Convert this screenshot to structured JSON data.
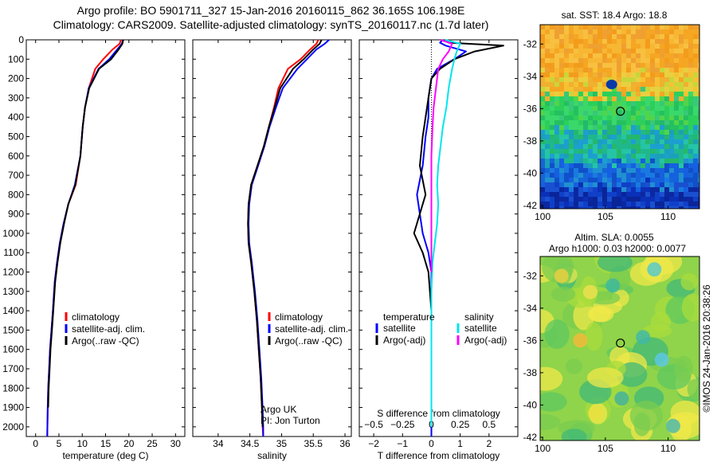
{
  "header": {
    "line1": "Argo profile: BO 5901711_327 15-Jan-2016 20160115_862 36.165S 106.198E",
    "line2": "Climatology: CARS2009. Satellite-adjusted climatology: synTS_20160117.nc (1.7d later)"
  },
  "chart_data": [
    {
      "type": "line",
      "title": "",
      "xlabel": "temperature (deg C)",
      "ylabel": "",
      "xlim": [
        -2,
        32
      ],
      "ylim": [
        2050,
        0
      ],
      "xticks": [
        0,
        5,
        10,
        15,
        20,
        25,
        30
      ],
      "xtick_labels": [
        "0",
        "5",
        "10",
        "15",
        "20",
        "25",
        "30"
      ],
      "yticks": [
        0,
        100,
        200,
        300,
        400,
        500,
        600,
        700,
        800,
        900,
        1000,
        1100,
        1200,
        1300,
        1400,
        1500,
        1600,
        1700,
        1800,
        1900,
        2000
      ],
      "ytick_labels": [
        "0",
        "100",
        "200",
        "300",
        "400",
        "500",
        "600",
        "700",
        "800",
        "900",
        "1000",
        "1100",
        "1200",
        "1300",
        "1400",
        "1500",
        "1600",
        "1700",
        "1800",
        "1900",
        "2000"
      ],
      "legend": [
        "climatology",
        "satellite-adj. clim.",
        "Argo(..raw -QC)"
      ],
      "series": [
        {
          "name": "climatology",
          "color": "#ff0000",
          "x": [
            18.3,
            18.0,
            16.5,
            14.5,
            12.8,
            11.4,
            10.6,
            10.1,
            9.6,
            8.6,
            7.0,
            6.0,
            5.2,
            4.6,
            4.1,
            3.7,
            3.4,
            3.1,
            2.9,
            2.7,
            2.6,
            2.5
          ],
          "y": [
            0,
            20,
            50,
            100,
            150,
            250,
            350,
            450,
            600,
            750,
            850,
            950,
            1050,
            1150,
            1250,
            1400,
            1500,
            1600,
            1700,
            1800,
            1900,
            2050
          ]
        },
        {
          "name": "satellite-adj. clim.",
          "color": "#0000ff",
          "x": [
            18.7,
            18.5,
            17.5,
            15.8,
            13.5,
            11.4,
            10.6,
            10.1,
            9.6,
            8.4,
            7.0,
            6.0,
            5.2,
            4.6,
            4.1,
            3.7,
            3.4,
            3.1,
            2.9,
            2.7,
            2.6,
            2.5
          ],
          "y": [
            0,
            20,
            50,
            100,
            150,
            250,
            350,
            450,
            600,
            750,
            850,
            950,
            1050,
            1150,
            1250,
            1400,
            1500,
            1600,
            1700,
            1800,
            1900,
            2050
          ]
        },
        {
          "name": "Argo(..raw -QC)",
          "color": "#000000",
          "x": [
            18.8,
            18.6,
            17.8,
            16.2,
            13.6,
            11.5,
            10.6,
            10.1,
            9.6,
            8.5,
            7.0,
            6.1,
            5.3,
            4.7,
            4.2,
            3.8,
            3.5,
            3.2,
            3.0,
            2.8,
            2.7
          ],
          "y": [
            0,
            20,
            50,
            100,
            150,
            250,
            350,
            450,
            600,
            750,
            850,
            950,
            1050,
            1150,
            1250,
            1400,
            1500,
            1600,
            1700,
            1800,
            1900
          ]
        }
      ]
    },
    {
      "type": "line",
      "title": "",
      "xlabel": "salinity",
      "ylabel": "",
      "xlim": [
        33.6,
        36.1
      ],
      "ylim": [
        2050,
        0
      ],
      "xticks": [
        34,
        34.5,
        35,
        35.5,
        36
      ],
      "xtick_labels": [
        "34",
        "34.5",
        "35",
        "35.5",
        "36"
      ],
      "legend": [
        "climatology",
        "satellite-adj. clim.",
        "Argo(..raw -QC)"
      ],
      "annotation": [
        "Argo UK",
        "PI: Jon Turton"
      ],
      "series": [
        {
          "name": "climatology",
          "color": "#ff0000",
          "x": [
            35.58,
            35.55,
            35.45,
            35.3,
            35.1,
            34.95,
            34.88,
            34.8,
            34.72,
            34.62,
            34.52,
            34.48,
            34.47,
            34.48,
            34.52,
            34.57,
            34.61,
            34.64,
            34.67,
            34.69,
            34.7,
            34.71
          ],
          "y": [
            0,
            20,
            50,
            100,
            150,
            250,
            350,
            450,
            550,
            650,
            750,
            850,
            950,
            1050,
            1150,
            1300,
            1450,
            1600,
            1750,
            1900,
            2000,
            2050
          ]
        },
        {
          "name": "satellite-adj. clim.",
          "color": "#0000ff",
          "x": [
            35.75,
            35.68,
            35.55,
            35.4,
            35.25,
            35.02,
            34.91,
            34.81,
            34.73,
            34.63,
            34.53,
            34.49,
            34.48,
            34.49,
            34.53,
            34.58,
            34.62,
            34.65,
            34.68,
            34.7,
            34.71,
            34.71
          ],
          "y": [
            0,
            20,
            50,
            100,
            150,
            250,
            350,
            450,
            550,
            650,
            750,
            850,
            950,
            1050,
            1150,
            1300,
            1450,
            1600,
            1750,
            1900,
            2000,
            2050
          ]
        },
        {
          "name": "Argo(..raw -QC)",
          "color": "#000000",
          "x": [
            35.63,
            35.6,
            35.5,
            35.35,
            35.18,
            34.98,
            34.89,
            34.8,
            34.72,
            34.62,
            34.52,
            34.48,
            34.47,
            34.48,
            34.52,
            34.57,
            34.61,
            34.64,
            34.67,
            34.69,
            34.7
          ],
          "y": [
            0,
            20,
            50,
            100,
            150,
            250,
            350,
            450,
            550,
            650,
            750,
            850,
            950,
            1050,
            1150,
            1300,
            1450,
            1600,
            1750,
            1900,
            2000
          ]
        }
      ]
    },
    {
      "type": "line",
      "title": "",
      "xlabel": "T difference from climatology",
      "xlabel_top": "S difference from climatology",
      "xlim": [
        -2.5,
        3.0
      ],
      "ylim": [
        2050,
        0
      ],
      "xticks": [
        -2,
        -1,
        0,
        1,
        2
      ],
      "xtick_labels": [
        "−2",
        "−1",
        "0",
        "1",
        "2"
      ],
      "xticks_top": [
        -0.5,
        -0.25,
        0,
        0.25,
        0.5
      ],
      "xtick_top_labels": [
        "−0.5",
        "−0.25",
        "0",
        "0.25",
        "0.5"
      ],
      "legend_temperature_title": "temperature",
      "legend_salinity_title": "salinity",
      "legend": [
        "satellite",
        "Argo(-adj)",
        "satellite",
        "Argo(-adj)"
      ],
      "series": [
        {
          "name": "temperature satellite",
          "color": "#0000ff",
          "x": [
            0.4,
            0.3,
            0.5,
            1.2,
            0.8,
            0.2,
            0.0,
            -0.1,
            -0.1,
            -0.2,
            -0.3,
            -0.5,
            -0.3,
            -0.1,
            0.0,
            0.0,
            0.0,
            0.0,
            0.0,
            0.0,
            0.0
          ],
          "y": [
            0,
            15,
            30,
            60,
            100,
            150,
            200,
            300,
            400,
            500,
            650,
            800,
            1000,
            1100,
            1200,
            1400,
            1600,
            1800,
            1900,
            2000,
            2050
          ]
        },
        {
          "name": "temperature Argo(-adj)",
          "color": "#000000",
          "x": [
            0.5,
            0.6,
            2.5,
            1.5,
            0.8,
            0.3,
            0.0,
            -0.1,
            -0.2,
            -0.3,
            -0.4,
            -0.2,
            -0.6,
            -0.3,
            -0.1,
            0.0,
            0.0,
            0.0,
            0.0,
            0.0
          ],
          "y": [
            0,
            15,
            30,
            60,
            100,
            150,
            200,
            300,
            400,
            500,
            650,
            800,
            1000,
            1100,
            1200,
            1400,
            1600,
            1800,
            1900,
            2000
          ]
        },
        {
          "name": "salinity satellite",
          "color": "#00e5ee",
          "x": [
            0.12,
            0.25,
            0.22,
            0.2,
            0.18,
            0.15,
            0.13,
            0.1,
            0.08,
            0.06,
            0.05,
            0.06,
            0.05,
            0.03,
            0.01,
            0.0,
            0.0,
            0.0,
            0.0
          ],
          "y": [
            0,
            20,
            60,
            100,
            150,
            250,
            350,
            450,
            550,
            650,
            750,
            850,
            950,
            1050,
            1150,
            1300,
            1500,
            1800,
            2000
          ]
        },
        {
          "name": "salinity Argo(-adj)",
          "color": "#ff00ff",
          "x": [
            0.08,
            0.18,
            0.15,
            0.1,
            0.06,
            0.04,
            0.02,
            0.01,
            0.0,
            0.0,
            0.0,
            0.0
          ],
          "y": [
            0,
            20,
            60,
            100,
            150,
            250,
            350,
            450,
            600,
            800,
            1000,
            1200
          ]
        }
      ]
    },
    {
      "type": "heatmap",
      "title": "sat. SST: 18.4  Argo: 18.8",
      "xlim": [
        99.8,
        112.5
      ],
      "ylim": [
        -42.2,
        -30.8
      ],
      "xticks": [
        100,
        105,
        110
      ],
      "xtick_labels": [
        "100",
        "105",
        "110"
      ],
      "yticks": [
        -32,
        -34,
        -36,
        -38,
        -40,
        -42
      ],
      "ytick_labels": [
        "-32",
        "-34",
        "-36",
        "-38",
        "-40",
        "-42"
      ],
      "marker": {
        "lon": 106.198,
        "lat": -36.165
      }
    },
    {
      "type": "heatmap",
      "title": "Altim. SLA: 0.0055",
      "subtitle": "Argo h1000: 0.03 h2000: 0.0077",
      "xlim": [
        99.8,
        112.5
      ],
      "ylim": [
        -42.2,
        -30.8
      ],
      "xticks": [
        100,
        105,
        110
      ],
      "xtick_labels": [
        "100",
        "105",
        "110"
      ],
      "yticks": [
        -32,
        -34,
        -36,
        -38,
        -40,
        -42
      ],
      "ytick_labels": [
        "-32",
        "-34",
        "-36",
        "-38",
        "-40",
        "-42"
      ],
      "marker": {
        "lon": 106.198,
        "lat": -36.165
      },
      "side_label": "©IMOS 24-Jan-2016 20:38:26"
    }
  ]
}
